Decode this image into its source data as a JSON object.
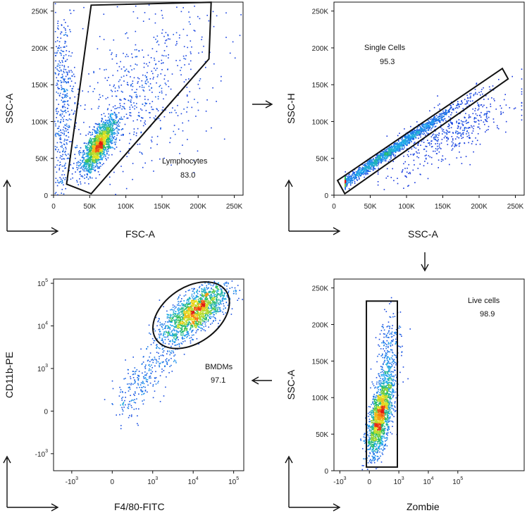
{
  "chart_data": [
    {
      "type": "scatter",
      "id": "p1",
      "x_param": "FSC-A",
      "y_param": "SSC-A",
      "xlim": [
        0,
        262144
      ],
      "ylim": [
        0,
        262144
      ],
      "x_ticks": [
        {
          "v": 0,
          "label": "0"
        },
        {
          "v": 50000,
          "label": "50K"
        },
        {
          "v": 100000,
          "label": "100K"
        },
        {
          "v": 150000,
          "label": "150K"
        },
        {
          "v": 200000,
          "label": "200K"
        },
        {
          "v": 250000,
          "label": "250K"
        }
      ],
      "y_ticks": [
        {
          "v": 0,
          "label": "0"
        },
        {
          "v": 50000,
          "label": "50K"
        },
        {
          "v": 100000,
          "label": "100K"
        },
        {
          "v": 150000,
          "label": "150K"
        },
        {
          "v": 200000,
          "label": "200K"
        },
        {
          "v": 250000,
          "label": "250K"
        }
      ],
      "gate": {
        "name": "Lymphocytes",
        "percent": "83.0",
        "shape": "polygon",
        "points": [
          [
            18000,
            15000
          ],
          [
            52000,
            2000
          ],
          [
            215000,
            185000
          ],
          [
            218000,
            262000
          ],
          [
            52000,
            258000
          ]
        ]
      },
      "populations": [
        {
          "cx": 62000,
          "cy": 68000,
          "sx": 12000,
          "sy": 18000,
          "n": 1600,
          "rho": 0.75
        },
        {
          "cx": 10000,
          "cy": 120000,
          "sx": 9000,
          "sy": 70000,
          "n": 500,
          "rho": 0.1
        },
        {
          "cx": 120000,
          "cy": 140000,
          "sx": 50000,
          "sy": 55000,
          "n": 600,
          "rho": 0.4
        }
      ]
    },
    {
      "type": "scatter",
      "id": "p2",
      "x_param": "SSC-A",
      "y_param": "SSC-H",
      "xlim": [
        0,
        262144
      ],
      "ylim": [
        0,
        262144
      ],
      "x_ticks": [
        {
          "v": 0,
          "label": "0"
        },
        {
          "v": 50000,
          "label": "50K"
        },
        {
          "v": 100000,
          "label": "100K"
        },
        {
          "v": 150000,
          "label": "150K"
        },
        {
          "v": 200000,
          "label": "200K"
        },
        {
          "v": 250000,
          "label": "250K"
        }
      ],
      "y_ticks": [
        {
          "v": 0,
          "label": "0"
        },
        {
          "v": 50000,
          "label": "50K"
        },
        {
          "v": 100000,
          "label": "100K"
        },
        {
          "v": 150000,
          "label": "150K"
        },
        {
          "v": 200000,
          "label": "200K"
        },
        {
          "v": 250000,
          "label": "250K"
        }
      ],
      "gate": {
        "name": "Single Cells",
        "percent": "95.3",
        "shape": "polygon",
        "points": [
          [
            5000,
            20000
          ],
          [
            15000,
            2000
          ],
          [
            240000,
            158000
          ],
          [
            232000,
            172000
          ]
        ]
      },
      "populations": [
        {
          "line": true,
          "x0": 15000,
          "x1": 230000,
          "slope": 0.68,
          "icept": 8000,
          "spread": 4000,
          "n": 1700,
          "mode": 70000
        },
        {
          "line": true,
          "x0": 60000,
          "x1": 258000,
          "slope": 0.5,
          "icept": 5000,
          "spread": 18000,
          "n": 500,
          "mode": 160000
        }
      ]
    },
    {
      "type": "scatter",
      "id": "p3",
      "x_param": "Zombie",
      "y_param": "SSC-A",
      "xlim": [
        -1.2,
        5.25
      ],
      "ylim": [
        0,
        262144
      ],
      "x_ticks": [
        {
          "v": -1,
          "base": "-10",
          "exp": "3"
        },
        {
          "v": 0,
          "label": "0"
        },
        {
          "v": 1,
          "base": "10",
          "exp": "3"
        },
        {
          "v": 2,
          "base": "10",
          "exp": "4"
        },
        {
          "v": 3,
          "base": "10",
          "exp": "5"
        }
      ],
      "y_ticks": [
        {
          "v": 0,
          "label": "0"
        },
        {
          "v": 50000,
          "label": "50K"
        },
        {
          "v": 100000,
          "label": "100K"
        },
        {
          "v": 150000,
          "label": "150K"
        },
        {
          "v": 200000,
          "label": "200K"
        },
        {
          "v": 250000,
          "label": "250K"
        }
      ],
      "gate": {
        "name": "Live cells",
        "percent": "98.9",
        "shape": "rect",
        "points": [
          [
            -0.1,
            5000
          ],
          [
            0.95,
            232000
          ]
        ]
      },
      "populations": [
        {
          "cx": 0.35,
          "cy": 75000,
          "sx": 0.22,
          "sy": 28000,
          "n": 1700,
          "rho": 0.6
        },
        {
          "cx": 0.65,
          "cy": 160000,
          "sx": 0.2,
          "sy": 30000,
          "n": 250,
          "rho": 0.3
        }
      ]
    },
    {
      "type": "scatter",
      "id": "p4",
      "x_param": "F4/80-FITC",
      "y_param": "CD11b-PE",
      "xlim": [
        -1.45,
        3.25
      ],
      "ylim": [
        -1.4,
        3.1
      ],
      "x_ticks": [
        {
          "v": -1,
          "base": "-10",
          "exp": "3"
        },
        {
          "v": 0,
          "label": "0"
        },
        {
          "v": 1,
          "base": "10",
          "exp": "3"
        },
        {
          "v": 2,
          "base": "10",
          "exp": "4"
        },
        {
          "v": 3,
          "base": "10",
          "exp": "5"
        }
      ],
      "y_ticks": [
        {
          "v": -1,
          "base": "-10",
          "exp": "3"
        },
        {
          "v": 0,
          "label": "0"
        },
        {
          "v": 1,
          "base": "10",
          "exp": "3"
        },
        {
          "v": 2,
          "base": "10",
          "exp": "4"
        },
        {
          "v": 3,
          "base": "10",
          "exp": "5"
        }
      ],
      "gate": {
        "name": "BMDMs",
        "percent": "97.1",
        "shape": "ellipse",
        "center": [
          1.95,
          2.25
        ],
        "radii": [
          1.05,
          0.65
        ],
        "angle": 35
      },
      "populations": [
        {
          "cx": 2.05,
          "cy": 2.35,
          "sx": 0.38,
          "sy": 0.3,
          "n": 1700,
          "rho": 0.65
        },
        {
          "curve": true,
          "n": 350
        }
      ]
    }
  ],
  "flow_arrows": [
    "right",
    "down",
    "left"
  ]
}
